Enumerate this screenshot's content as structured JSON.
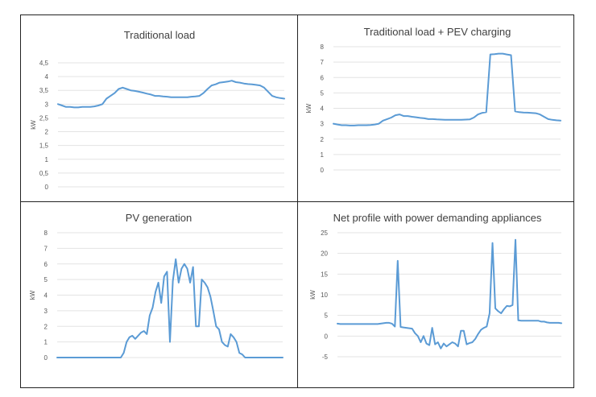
{
  "chart_data": [
    {
      "type": "line",
      "title": "Traditional load",
      "ylabel": "kW",
      "ylim": [
        0,
        4.5
      ],
      "yticks": [
        "0",
        "0,5",
        "1",
        "1,5",
        "2",
        "2,5",
        "3",
        "3,5",
        "4",
        "4,5"
      ],
      "yticks_values": [
        0,
        0.5,
        1,
        1.5,
        2,
        2.5,
        3,
        3.5,
        4,
        4.5
      ],
      "grid": true,
      "color": "#5b9bd5",
      "values": [
        3.0,
        2.95,
        2.9,
        2.9,
        2.88,
        2.88,
        2.9,
        2.9,
        2.9,
        2.92,
        2.95,
        3.0,
        3.2,
        3.3,
        3.4,
        3.55,
        3.6,
        3.55,
        3.5,
        3.48,
        3.45,
        3.42,
        3.38,
        3.35,
        3.3,
        3.3,
        3.28,
        3.27,
        3.25,
        3.25,
        3.25,
        3.25,
        3.25,
        3.27,
        3.28,
        3.3,
        3.4,
        3.55,
        3.68,
        3.72,
        3.78,
        3.8,
        3.82,
        3.85,
        3.8,
        3.78,
        3.75,
        3.73,
        3.72,
        3.7,
        3.68,
        3.6,
        3.45,
        3.3,
        3.25,
        3.22,
        3.2
      ]
    },
    {
      "type": "line",
      "title": "Traditional load + PEV charging",
      "ylabel": "kW",
      "ylim": [
        0,
        8
      ],
      "yticks": [
        "0",
        "1",
        "2",
        "3",
        "4",
        "5",
        "6",
        "7",
        "8"
      ],
      "yticks_values": [
        0,
        1,
        2,
        3,
        4,
        5,
        6,
        7,
        8
      ],
      "grid": true,
      "color": "#5b9bd5",
      "values": [
        3.0,
        2.95,
        2.9,
        2.9,
        2.88,
        2.88,
        2.9,
        2.9,
        2.9,
        2.92,
        2.95,
        3.0,
        3.2,
        3.3,
        3.4,
        3.55,
        3.6,
        3.5,
        3.5,
        3.45,
        3.42,
        3.38,
        3.35,
        3.3,
        3.3,
        3.28,
        3.27,
        3.25,
        3.25,
        3.25,
        3.25,
        3.25,
        3.27,
        3.28,
        3.4,
        3.6,
        3.7,
        3.75,
        7.5,
        7.52,
        7.55,
        7.55,
        7.5,
        7.45,
        3.8,
        3.75,
        3.73,
        3.72,
        3.7,
        3.68,
        3.6,
        3.45,
        3.3,
        3.25,
        3.22,
        3.2
      ]
    },
    {
      "type": "line",
      "title": "PV generation",
      "ylabel": "kW",
      "ylim": [
        0,
        8
      ],
      "yticks": [
        "0",
        "1",
        "2",
        "3",
        "4",
        "5",
        "6",
        "7",
        "8"
      ],
      "yticks_values": [
        0,
        1,
        2,
        3,
        4,
        5,
        6,
        7,
        8
      ],
      "grid": true,
      "color": "#5b9bd5",
      "values": [
        0,
        0,
        0,
        0,
        0,
        0,
        0,
        0,
        0,
        0,
        0,
        0,
        0,
        0,
        0,
        0,
        0,
        0,
        0,
        0,
        0,
        0,
        0,
        0.3,
        1.0,
        1.3,
        1.4,
        1.2,
        1.4,
        1.6,
        1.7,
        1.5,
        2.7,
        3.2,
        4.2,
        4.8,
        3.5,
        5.2,
        5.5,
        1.0,
        4.9,
        6.3,
        4.8,
        5.7,
        6.0,
        5.7,
        4.8,
        5.8,
        2.0,
        2.0,
        5.0,
        4.8,
        4.5,
        3.9,
        3.0,
        2.0,
        1.8,
        1.0,
        0.8,
        0.7,
        1.5,
        1.3,
        1.0,
        0.3,
        0.2,
        0,
        0,
        0,
        0,
        0,
        0,
        0,
        0,
        0,
        0,
        0,
        0,
        0,
        0
      ]
    },
    {
      "type": "line",
      "title": "Net profile with power demanding appliances",
      "ylabel": "kW",
      "ylim": [
        -5,
        25
      ],
      "yticks": [
        "-5",
        "0",
        "5",
        "10",
        "15",
        "20",
        "25"
      ],
      "yticks_values": [
        -5,
        0,
        5,
        10,
        15,
        20,
        25
      ],
      "grid": true,
      "color": "#5b9bd5",
      "values": [
        3.0,
        2.9,
        2.9,
        2.9,
        2.9,
        2.9,
        2.9,
        2.9,
        2.9,
        2.9,
        2.9,
        2.9,
        2.9,
        2.9,
        2.9,
        3.0,
        3.1,
        3.2,
        3.2,
        3.0,
        2.3,
        18.2,
        2.2,
        2.1,
        2.0,
        1.9,
        1.8,
        0.7,
        0,
        -1.5,
        0,
        -1.8,
        -2.2,
        2.0,
        -2.0,
        -1.5,
        -3.0,
        -1.8,
        -2.5,
        -2.0,
        -1.5,
        -1.8,
        -2.5,
        1.3,
        1.3,
        -2.0,
        -1.7,
        -1.5,
        -0.7,
        0.5,
        1.5,
        2.0,
        2.3,
        5.5,
        22.5,
        6.7,
        6.0,
        5.5,
        6.5,
        7.3,
        7.2,
        7.5,
        23.3,
        3.8,
        3.7,
        3.7,
        3.7,
        3.7,
        3.7,
        3.7,
        3.7,
        3.5,
        3.5,
        3.3,
        3.2,
        3.2,
        3.2,
        3.2,
        3.1
      ]
    }
  ]
}
